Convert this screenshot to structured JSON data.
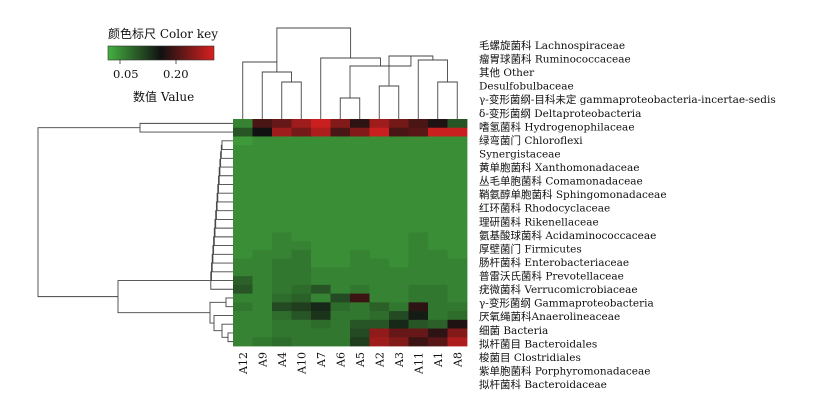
{
  "chart_data": {
    "type": "heatmap",
    "color_key": {
      "title": "颜色标尺 Color key",
      "tick_labels": [
        "0.05",
        "0.20"
      ],
      "value_label": "数值 Value",
      "colors": [
        "#44b040",
        "#111111",
        "#d82020"
      ]
    },
    "columns": [
      "A12",
      "A9",
      "A4",
      "A10",
      "A7",
      "A6",
      "A5",
      "A2",
      "A3",
      "A11",
      "A1",
      "A8"
    ],
    "rows": [
      "毛螺旋菌科 Lachnospiraceae",
      "瘤胃球菌科 Ruminococcaceae",
      "其他 Other",
      "Desulfobulbaceae",
      "γ-变形菌纲-目科未定 gammaproteobacteria-incertae-sedis",
      "δ-变形菌纲 Deltaproteobacteria",
      "嗜氢菌科 Hydrogenophilaceae",
      "绿弯菌门 Chloroflexi",
      "Synergistaceae",
      "黄单胞菌科 Xanthomonadaceae",
      "丛毛单胞菌科 Comamonadaceae",
      "鞘氨醇单胞菌科 Sphingomonadaceae",
      "红环菌科 Rhodocyclaceae",
      "理研菌科 Rikenellaceae",
      "氨基酸球菌科 Acidaminococcaceae",
      "厚壁菌门 Firmicutes",
      "肠杆菌科 Enterobacteriaceae",
      "普雷沃氏菌科 Prevotellaceae",
      "疣微菌科 Verrucomicrobiaceae",
      "γ-变形菌纲 Gammaproteobacteria",
      "厌氧绳菌科Anaerolineaceae",
      "细菌 Bacteria",
      "拟杆菌目 Bacteroidales",
      "梭菌目 Clostridiales",
      "紫单胞菌科 Porphyromonadaceae",
      "拟杆菌科 Bacteroidaceae"
    ],
    "values": [
      [
        0.04,
        0.18,
        0.2,
        0.24,
        0.27,
        0.22,
        0.16,
        0.24,
        0.21,
        0.18,
        0.15,
        0.08
      ],
      [
        0.08,
        0.14,
        0.24,
        0.21,
        0.25,
        0.18,
        0.22,
        0.27,
        0.18,
        0.19,
        0.27,
        0.27
      ],
      [
        0.02,
        0.03,
        0.03,
        0.03,
        0.03,
        0.03,
        0.03,
        0.03,
        0.03,
        0.03,
        0.03,
        0.03
      ],
      [
        0.03,
        0.03,
        0.03,
        0.03,
        0.03,
        0.03,
        0.03,
        0.03,
        0.03,
        0.03,
        0.03,
        0.03
      ],
      [
        0.03,
        0.03,
        0.03,
        0.03,
        0.03,
        0.03,
        0.03,
        0.03,
        0.03,
        0.03,
        0.03,
        0.03
      ],
      [
        0.03,
        0.03,
        0.03,
        0.03,
        0.03,
        0.03,
        0.03,
        0.03,
        0.03,
        0.03,
        0.03,
        0.03
      ],
      [
        0.03,
        0.03,
        0.03,
        0.03,
        0.03,
        0.03,
        0.03,
        0.03,
        0.03,
        0.03,
        0.03,
        0.03
      ],
      [
        0.03,
        0.03,
        0.03,
        0.03,
        0.03,
        0.03,
        0.03,
        0.03,
        0.03,
        0.03,
        0.03,
        0.03
      ],
      [
        0.03,
        0.03,
        0.03,
        0.03,
        0.03,
        0.03,
        0.03,
        0.03,
        0.03,
        0.03,
        0.03,
        0.03
      ],
      [
        0.03,
        0.03,
        0.03,
        0.03,
        0.03,
        0.03,
        0.03,
        0.03,
        0.03,
        0.03,
        0.03,
        0.03
      ],
      [
        0.03,
        0.03,
        0.03,
        0.03,
        0.03,
        0.03,
        0.03,
        0.03,
        0.03,
        0.03,
        0.03,
        0.03
      ],
      [
        0.03,
        0.03,
        0.03,
        0.03,
        0.03,
        0.03,
        0.03,
        0.03,
        0.03,
        0.03,
        0.03,
        0.03
      ],
      [
        0.03,
        0.03,
        0.03,
        0.03,
        0.03,
        0.03,
        0.03,
        0.03,
        0.03,
        0.03,
        0.03,
        0.03
      ],
      [
        0.03,
        0.03,
        0.04,
        0.03,
        0.03,
        0.03,
        0.03,
        0.03,
        0.03,
        0.04,
        0.03,
        0.03
      ],
      [
        0.03,
        0.03,
        0.04,
        0.04,
        0.03,
        0.03,
        0.03,
        0.03,
        0.03,
        0.04,
        0.03,
        0.03
      ],
      [
        0.03,
        0.04,
        0.04,
        0.05,
        0.03,
        0.03,
        0.04,
        0.03,
        0.03,
        0.04,
        0.04,
        0.03
      ],
      [
        0.04,
        0.04,
        0.05,
        0.05,
        0.03,
        0.03,
        0.04,
        0.04,
        0.03,
        0.04,
        0.04,
        0.04
      ],
      [
        0.04,
        0.04,
        0.05,
        0.05,
        0.04,
        0.04,
        0.04,
        0.04,
        0.04,
        0.04,
        0.04,
        0.04
      ],
      [
        0.07,
        0.04,
        0.05,
        0.05,
        0.04,
        0.04,
        0.04,
        0.04,
        0.04,
        0.04,
        0.04,
        0.04
      ],
      [
        0.08,
        0.04,
        0.05,
        0.06,
        0.08,
        0.04,
        0.05,
        0.04,
        0.04,
        0.05,
        0.05,
        0.04
      ],
      [
        0.04,
        0.04,
        0.06,
        0.07,
        0.04,
        0.09,
        0.17,
        0.04,
        0.04,
        0.05,
        0.05,
        0.04
      ],
      [
        0.05,
        0.04,
        0.09,
        0.1,
        0.12,
        0.06,
        0.05,
        0.07,
        0.05,
        0.16,
        0.05,
        0.05
      ],
      [
        0.04,
        0.04,
        0.06,
        0.08,
        0.11,
        0.05,
        0.05,
        0.06,
        0.09,
        0.13,
        0.05,
        0.06
      ],
      [
        0.04,
        0.04,
        0.05,
        0.05,
        0.06,
        0.05,
        0.08,
        0.08,
        0.12,
        0.08,
        0.07,
        0.15
      ],
      [
        0.04,
        0.04,
        0.05,
        0.05,
        0.05,
        0.05,
        0.09,
        0.23,
        0.2,
        0.2,
        0.16,
        0.22
      ],
      [
        0.04,
        0.05,
        0.06,
        0.05,
        0.05,
        0.05,
        0.1,
        0.24,
        0.22,
        0.17,
        0.19,
        0.25
      ]
    ]
  }
}
